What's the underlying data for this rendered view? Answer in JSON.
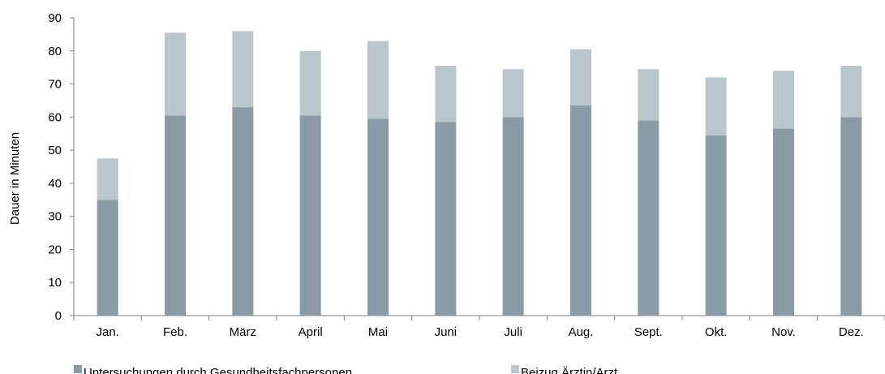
{
  "chart_data": {
    "type": "bar",
    "stacked": true,
    "categories": [
      "Jan.",
      "Feb.",
      "März",
      "April",
      "Mai",
      "Juni",
      "Juli",
      "Aug.",
      "Sept.",
      "Okt.",
      "Nov.",
      "Dez."
    ],
    "series": [
      {
        "name": "Untersuchungen durch Gesundheitsfachpersonen",
        "color": "#8a9ba5",
        "values": [
          35,
          60.5,
          63,
          60.5,
          59.5,
          58.5,
          60,
          63.5,
          59,
          54.5,
          56.5,
          60
        ]
      },
      {
        "name": "Beizug Ärztin/Arzt",
        "color": "#b9c6cc",
        "values": [
          12.5,
          25,
          23,
          19.5,
          23.5,
          17,
          14.5,
          17,
          15.5,
          17.5,
          17.5,
          15.5
        ]
      }
    ],
    "title": "",
    "xlabel": "",
    "ylabel": "Dauer in Minuten",
    "ylim": [
      0,
      90
    ],
    "ytick_step": 10,
    "grid": false,
    "legend_position": "bottom"
  }
}
